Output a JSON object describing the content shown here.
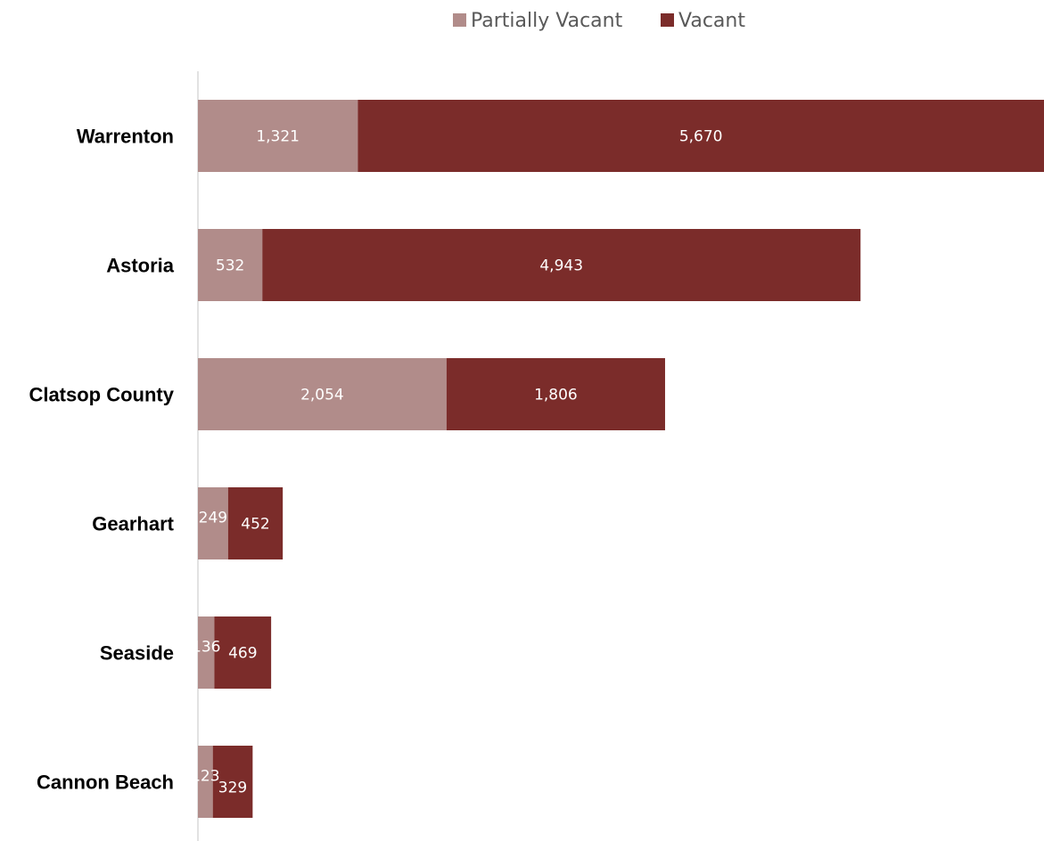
{
  "chart_data": {
    "type": "bar",
    "orientation": "horizontal",
    "stacked": true,
    "categories": [
      "Warrenton",
      "Astoria",
      "Clatsop County",
      "Gearhart",
      "Seaside",
      "Cannon Beach"
    ],
    "series": [
      {
        "name": "Partially Vacant",
        "color": "#b18c8a",
        "values": [
          1321,
          532,
          2054,
          249,
          136,
          123
        ],
        "labels": [
          "1,321",
          "532",
          "2,054",
          "249",
          "136",
          "123"
        ]
      },
      {
        "name": "Vacant",
        "color": "#7b2c2a",
        "values": [
          5670,
          4943,
          1806,
          452,
          469,
          329
        ],
        "labels": [
          "5,670",
          "4,943",
          "1,806",
          "452",
          "469",
          "329"
        ]
      }
    ],
    "xlim": [
      0,
      6991
    ],
    "legend_position": "top",
    "grid": false,
    "axis_line_color": "#d9d9d9"
  }
}
